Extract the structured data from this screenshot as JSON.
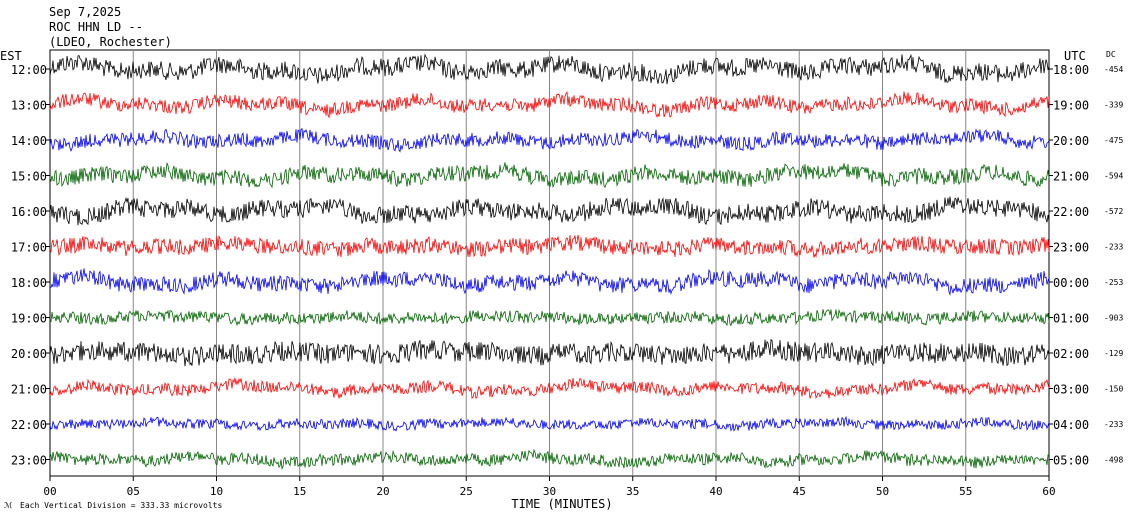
{
  "header": {
    "date": "Sep 7,2025",
    "station": "ROC HHN LD --",
    "network": "(LDEO, Rochester)"
  },
  "left_zone": "EST",
  "right_zone": "UTC",
  "dc_label": "DC",
  "footer_note": "Each Vertical Division =  333.33 microvolts",
  "chart_data": {
    "type": "line",
    "subtype": "helicorder",
    "xlabel": "TIME (MINUTES)",
    "xlim": [
      0,
      60
    ],
    "x_ticks": [
      "00",
      "05",
      "10",
      "15",
      "20",
      "25",
      "30",
      "35",
      "40",
      "45",
      "50",
      "55",
      "60"
    ],
    "grid": "vertical lines every 5 minutes",
    "trace_colors": [
      "#000000",
      "#ff0000",
      "#0000ff",
      "#006400"
    ],
    "rows": [
      {
        "est": "12:00",
        "utc": "18:00",
        "dc": "-454",
        "color": "#000000",
        "amp": 9,
        "slow": 6
      },
      {
        "est": "13:00",
        "utc": "19:00",
        "dc": "-339",
        "color": "#ff0000",
        "amp": 7,
        "slow": 5
      },
      {
        "est": "14:00",
        "utc": "20:00",
        "dc": "-475",
        "color": "#0000ff",
        "amp": 7,
        "slow": 4
      },
      {
        "est": "15:00",
        "utc": "21:00",
        "dc": "-594",
        "color": "#006400",
        "amp": 8,
        "slow": 5
      },
      {
        "est": "16:00",
        "utc": "22:00",
        "dc": "-572",
        "color": "#000000",
        "amp": 9,
        "slow": 6
      },
      {
        "est": "17:00",
        "utc": "23:00",
        "dc": "-233",
        "color": "#ff0000",
        "amp": 8,
        "slow": 3
      },
      {
        "est": "18:00",
        "utc": "00:00",
        "dc": "-253",
        "color": "#0000ff",
        "amp": 8,
        "slow": 5
      },
      {
        "est": "19:00",
        "utc": "01:00",
        "dc": "-903",
        "color": "#006400",
        "amp": 6,
        "slow": 2
      },
      {
        "est": "20:00",
        "utc": "02:00",
        "dc": "-129",
        "color": "#000000",
        "amp": 10,
        "slow": 3
      },
      {
        "est": "21:00",
        "utc": "03:00",
        "dc": "-150",
        "color": "#ff0000",
        "amp": 6,
        "slow": 4
      },
      {
        "est": "22:00",
        "utc": "04:00",
        "dc": "-233",
        "color": "#0000ff",
        "amp": 5,
        "slow": 2
      },
      {
        "est": "23:00",
        "utc": "05:00",
        "dc": "-498",
        "color": "#006400",
        "amp": 6,
        "slow": 3
      }
    ]
  }
}
